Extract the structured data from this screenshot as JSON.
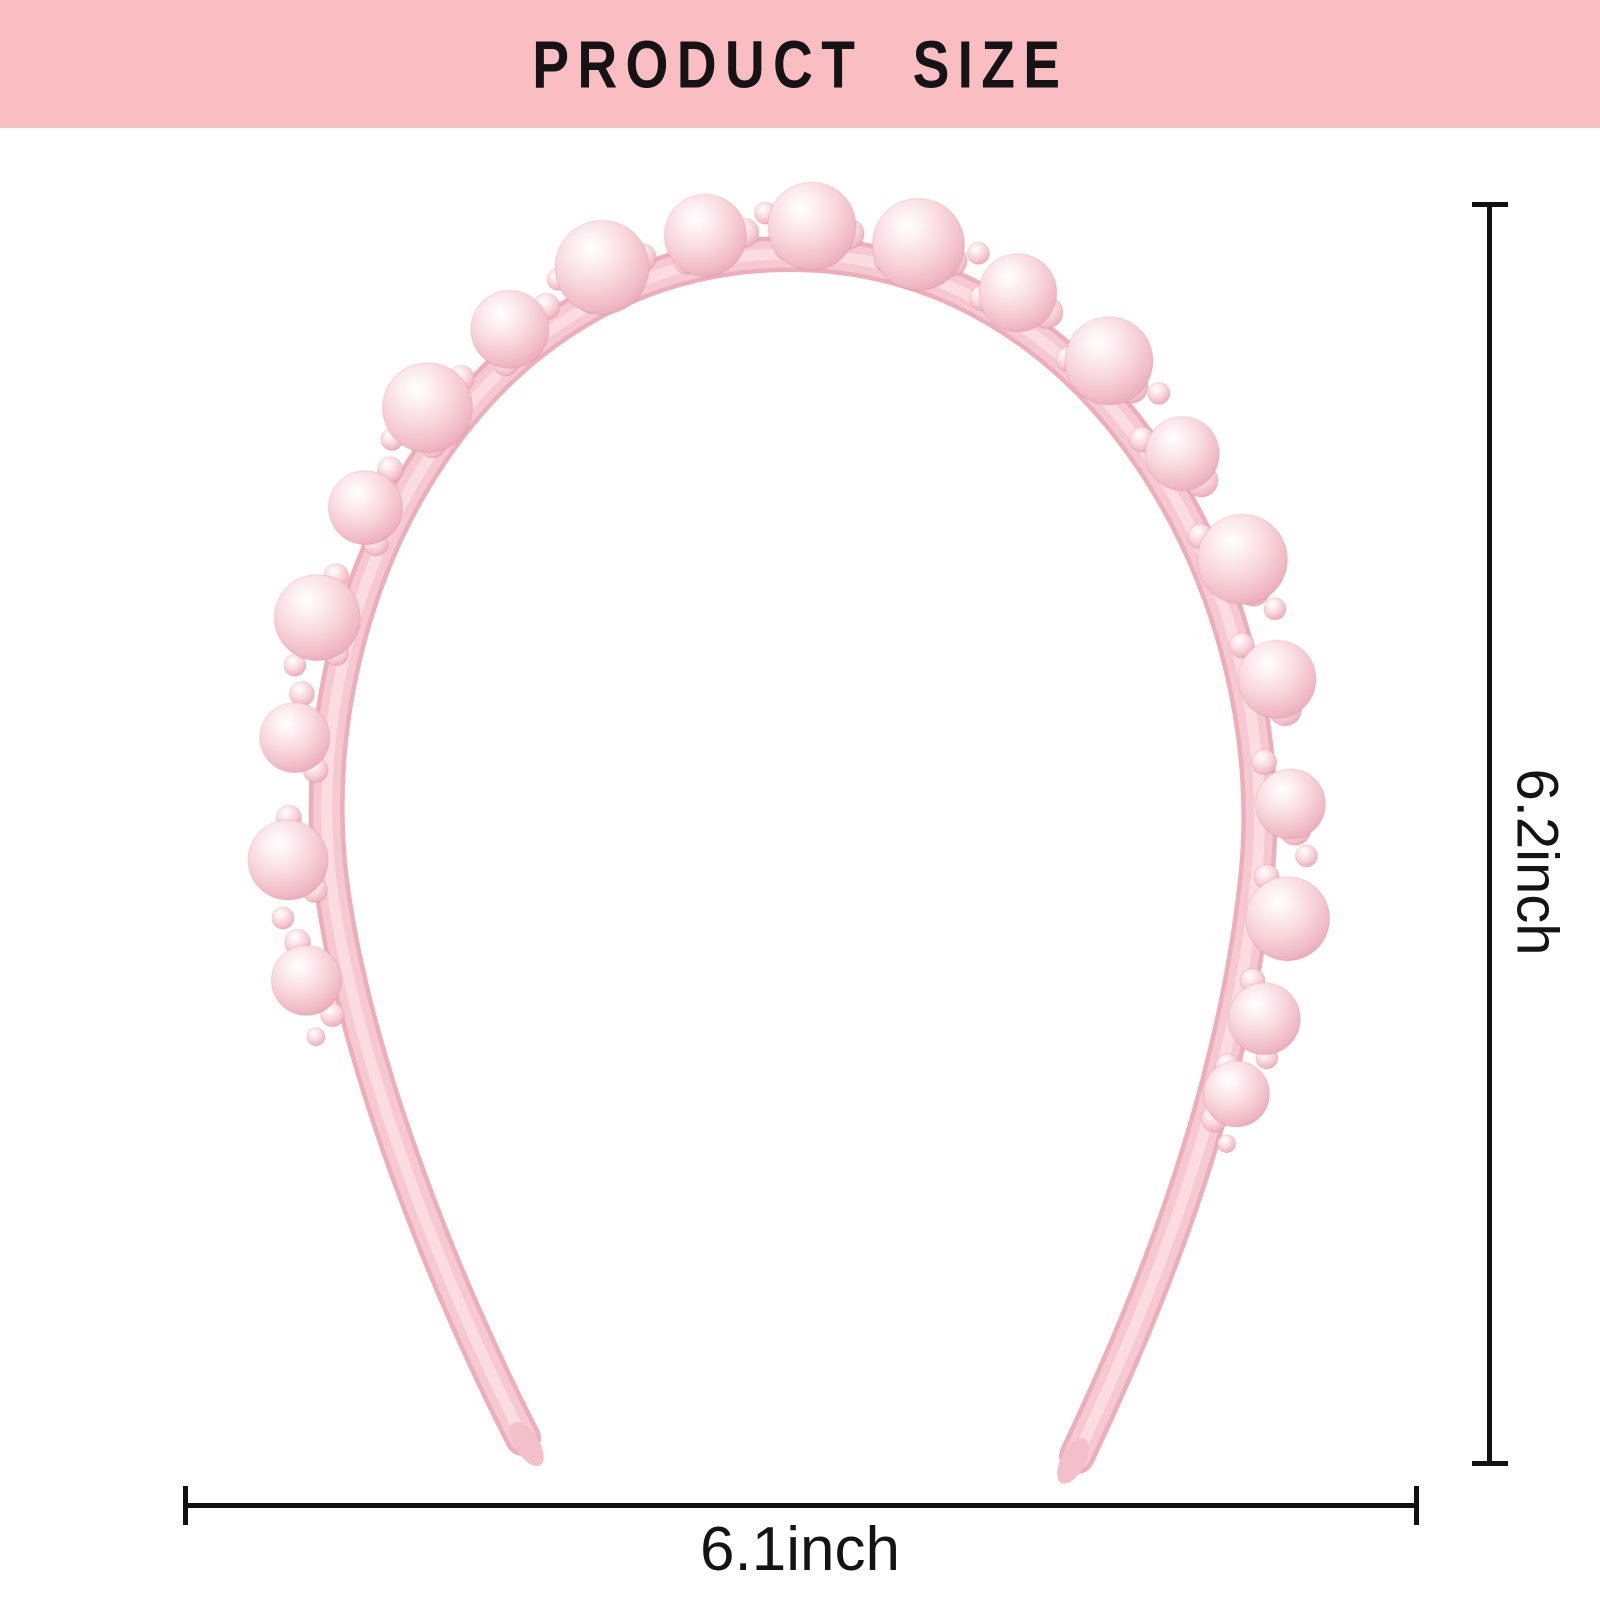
{
  "banner": {
    "title": "PRODUCT SIZE"
  },
  "dimensions": {
    "height_label": "6.2inch",
    "width_label": "6.1inch"
  },
  "product": {
    "name": "pink-pearl-headband"
  },
  "colors": {
    "banner_bg": "#f9bdc2",
    "text": "#141414",
    "dimension_line": "#111111",
    "band_edge_pink": "#edaebb",
    "band_pink": "#f6c9d2",
    "band_highlight": "#fbdfe4",
    "tip_pink": "#f2bfca",
    "pearl_gradient": [
      "#ffffff",
      "#fdf0f2",
      "#f8d6dc",
      "#f1bdc8",
      "#ebacba",
      "#e7a1b1"
    ]
  }
}
